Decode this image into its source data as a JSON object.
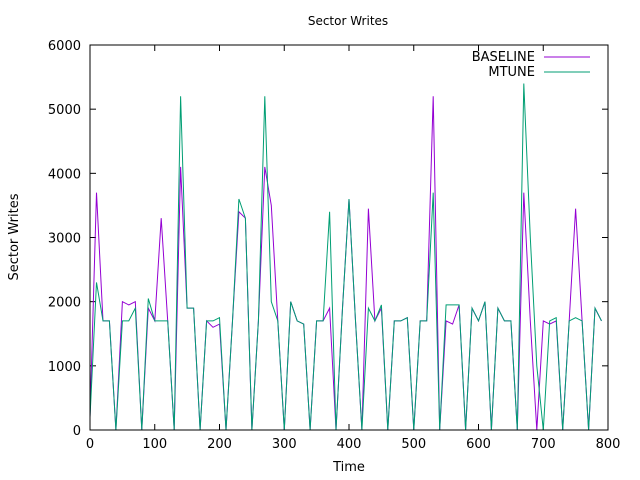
{
  "chart_data": {
    "type": "line",
    "title": "Sector Writes",
    "xlabel": "Time",
    "ylabel": "Sector Writes",
    "xlim": [
      0,
      800
    ],
    "ylim": [
      0,
      6000
    ],
    "xticks": [
      0,
      100,
      200,
      300,
      400,
      500,
      600,
      700,
      800
    ],
    "yticks": [
      0,
      1000,
      2000,
      3000,
      4000,
      5000,
      6000
    ],
    "grid": false,
    "legend_position": "top-right",
    "x": [
      0,
      10,
      20,
      30,
      40,
      50,
      60,
      70,
      80,
      90,
      100,
      110,
      120,
      130,
      140,
      150,
      160,
      170,
      180,
      190,
      200,
      210,
      220,
      230,
      240,
      250,
      260,
      270,
      280,
      290,
      300,
      310,
      320,
      330,
      340,
      350,
      360,
      370,
      380,
      390,
      400,
      410,
      420,
      430,
      440,
      450,
      460,
      470,
      480,
      490,
      500,
      510,
      520,
      530,
      540,
      550,
      560,
      570,
      580,
      590,
      600,
      610,
      620,
      630,
      640,
      650,
      660,
      670,
      680,
      690,
      700,
      710,
      720,
      730,
      740,
      750,
      760,
      770,
      780,
      790
    ],
    "series": [
      {
        "name": "BASELINE",
        "color": "#9400d3",
        "values": [
          200,
          3700,
          1700,
          1700,
          0,
          2000,
          1950,
          2000,
          0,
          1900,
          1700,
          3300,
          1700,
          0,
          4100,
          1900,
          1900,
          0,
          1700,
          1600,
          1650,
          0,
          1700,
          3400,
          3300,
          0,
          1700,
          4100,
          3500,
          1700,
          0,
          2000,
          1700,
          1650,
          0,
          1700,
          1700,
          1900,
          0,
          1900,
          3600,
          1700,
          0,
          3450,
          1700,
          1900,
          0,
          1700,
          1700,
          1750,
          0,
          1700,
          1700,
          5200,
          0,
          1700,
          1650,
          1950,
          0,
          1900,
          1700,
          2000,
          0,
          1900,
          1700,
          1700,
          0,
          3700,
          1700,
          0,
          1700,
          1650,
          1700,
          0,
          1700,
          3450,
          1700,
          0,
          1900,
          1700
        ]
      },
      {
        "name": "MTUNE",
        "color": "#009e73",
        "values": [
          200,
          2300,
          1700,
          1700,
          0,
          1700,
          1700,
          1900,
          0,
          2050,
          1700,
          1700,
          1700,
          0,
          5200,
          1900,
          1900,
          0,
          1700,
          1700,
          1750,
          0,
          1700,
          3600,
          3300,
          0,
          1700,
          5200,
          2000,
          1700,
          0,
          2000,
          1700,
          1650,
          0,
          1700,
          1700,
          3400,
          0,
          1900,
          3600,
          1700,
          0,
          1900,
          1700,
          1950,
          0,
          1700,
          1700,
          1750,
          0,
          1700,
          1700,
          3700,
          0,
          1950,
          1950,
          1950,
          0,
          1900,
          1700,
          2000,
          0,
          1900,
          1700,
          1700,
          0,
          5400,
          3000,
          1000,
          0,
          1700,
          1750,
          0,
          1700,
          1750,
          1700,
          0,
          1900,
          1700
        ]
      }
    ]
  }
}
